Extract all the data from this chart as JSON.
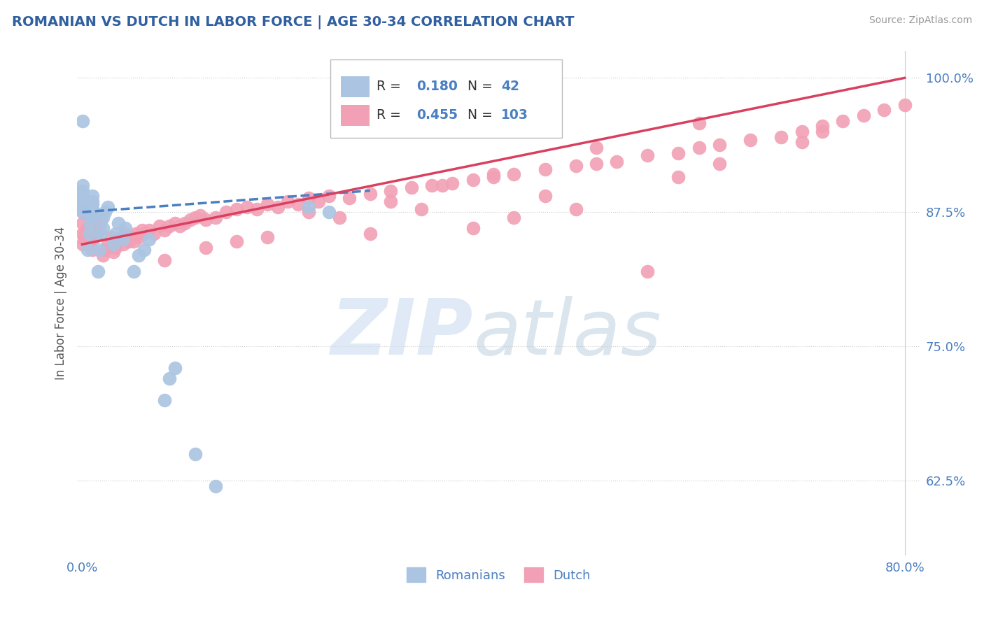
{
  "title": "ROMANIAN VS DUTCH IN LABOR FORCE | AGE 30-34 CORRELATION CHART",
  "source": "Source: ZipAtlas.com",
  "ylabel": "In Labor Force | Age 30-34",
  "r_romanian": 0.18,
  "n_romanian": 42,
  "r_dutch": 0.455,
  "n_dutch": 103,
  "romanian_color": "#aac4e2",
  "dutch_color": "#f2a0b5",
  "trend_romanian_color": "#4a7fc1",
  "trend_dutch_color": "#d94060",
  "title_color": "#3060a0",
  "axis_color": "#4a7fc1",
  "source_color": "#999999",
  "ylabel_color": "#555555",
  "watermark_zip_color": "#ccddf0",
  "watermark_atlas_color": "#b8ccdf",
  "xlim_min": -0.005,
  "xlim_max": 0.815,
  "ylim_min": 0.555,
  "ylim_max": 1.025,
  "yticks": [
    0.625,
    0.75,
    0.875,
    1.0
  ],
  "ytick_labels": [
    "62.5%",
    "75.0%",
    "87.5%",
    "100.0%"
  ],
  "xtick_labels": [
    "0.0%",
    "80.0%"
  ],
  "xtick_pos": [
    0.0,
    0.8
  ],
  "rom_x": [
    0.0,
    0.0,
    0.0,
    0.0,
    0.0,
    0.0,
    0.0,
    0.0,
    0.0,
    0.0,
    0.005,
    0.007,
    0.008,
    0.009,
    0.01,
    0.01,
    0.01,
    0.01,
    0.01,
    0.015,
    0.017,
    0.018,
    0.02,
    0.02,
    0.022,
    0.025,
    0.03,
    0.032,
    0.035,
    0.04,
    0.042,
    0.05,
    0.055,
    0.06,
    0.065,
    0.08,
    0.085,
    0.09,
    0.11,
    0.13,
    0.22,
    0.24
  ],
  "rom_y": [
    0.875,
    0.88,
    0.882,
    0.885,
    0.888,
    0.89,
    0.892,
    0.895,
    0.9,
    0.96,
    0.84,
    0.855,
    0.865,
    0.87,
    0.875,
    0.878,
    0.882,
    0.885,
    0.89,
    0.82,
    0.84,
    0.855,
    0.86,
    0.87,
    0.875,
    0.88,
    0.845,
    0.855,
    0.865,
    0.85,
    0.86,
    0.82,
    0.835,
    0.84,
    0.85,
    0.7,
    0.72,
    0.73,
    0.65,
    0.62,
    0.88,
    0.875
  ],
  "dutch_x": [
    0.0,
    0.0,
    0.0,
    0.0,
    0.002,
    0.003,
    0.005,
    0.007,
    0.01,
    0.01,
    0.012,
    0.014,
    0.015,
    0.016,
    0.018,
    0.02,
    0.022,
    0.025,
    0.028,
    0.03,
    0.032,
    0.035,
    0.038,
    0.04,
    0.042,
    0.045,
    0.048,
    0.05,
    0.052,
    0.055,
    0.058,
    0.06,
    0.065,
    0.07,
    0.075,
    0.08,
    0.085,
    0.09,
    0.095,
    0.1,
    0.105,
    0.11,
    0.115,
    0.12,
    0.13,
    0.14,
    0.15,
    0.16,
    0.17,
    0.18,
    0.19,
    0.2,
    0.21,
    0.22,
    0.23,
    0.24,
    0.26,
    0.28,
    0.3,
    0.32,
    0.34,
    0.36,
    0.38,
    0.4,
    0.42,
    0.45,
    0.48,
    0.5,
    0.52,
    0.55,
    0.58,
    0.6,
    0.62,
    0.65,
    0.68,
    0.7,
    0.72,
    0.74,
    0.76,
    0.78,
    0.8,
    0.35,
    0.25,
    0.15,
    0.08,
    0.12,
    0.18,
    0.22,
    0.3,
    0.4,
    0.5,
    0.6,
    0.42,
    0.55,
    0.38,
    0.28,
    0.33,
    0.45,
    0.58,
    0.7,
    0.48,
    0.62,
    0.72
  ],
  "dutch_y": [
    0.845,
    0.855,
    0.865,
    0.875,
    0.85,
    0.855,
    0.86,
    0.87,
    0.84,
    0.85,
    0.852,
    0.855,
    0.858,
    0.862,
    0.868,
    0.835,
    0.84,
    0.845,
    0.852,
    0.838,
    0.842,
    0.848,
    0.852,
    0.845,
    0.855,
    0.848,
    0.852,
    0.848,
    0.855,
    0.852,
    0.858,
    0.855,
    0.858,
    0.855,
    0.862,
    0.858,
    0.862,
    0.865,
    0.862,
    0.865,
    0.868,
    0.87,
    0.872,
    0.868,
    0.87,
    0.875,
    0.878,
    0.88,
    0.878,
    0.882,
    0.88,
    0.885,
    0.882,
    0.888,
    0.885,
    0.89,
    0.888,
    0.892,
    0.895,
    0.898,
    0.9,
    0.902,
    0.905,
    0.908,
    0.91,
    0.915,
    0.918,
    0.92,
    0.922,
    0.928,
    0.93,
    0.935,
    0.938,
    0.942,
    0.945,
    0.95,
    0.955,
    0.96,
    0.965,
    0.97,
    0.975,
    0.9,
    0.87,
    0.848,
    0.83,
    0.842,
    0.852,
    0.875,
    0.885,
    0.91,
    0.935,
    0.958,
    0.87,
    0.82,
    0.86,
    0.855,
    0.878,
    0.89,
    0.908,
    0.94,
    0.878,
    0.92,
    0.95
  ]
}
